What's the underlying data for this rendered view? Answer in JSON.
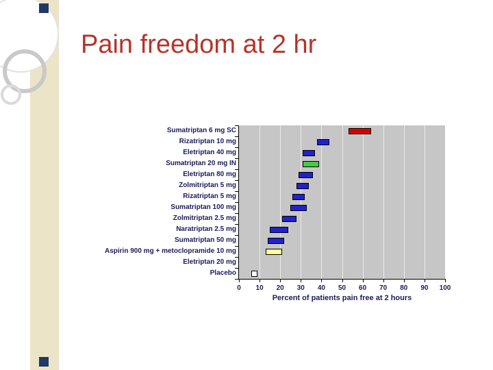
{
  "slide": {
    "title": "Pain freedom at 2 hr"
  },
  "theme": {
    "band_color": "#ece4c6",
    "accent_square_color": "#1f3864",
    "title_color": "#b5342a"
  },
  "chart_data": {
    "type": "bar",
    "orientation": "horizontal-range",
    "title": "",
    "xlabel": "Percent of patients pain free at 2 hours",
    "xlim": [
      0,
      100
    ],
    "xticks": [
      0,
      10,
      20,
      30,
      40,
      50,
      60,
      70,
      80,
      90,
      100
    ],
    "plot_bg": "#c6c6c6",
    "grid": true,
    "legend": false,
    "bars": [
      {
        "label": "Sumatriptan 6 mg SC",
        "low": 53,
        "high": 64,
        "color": "#d40000"
      },
      {
        "label": "Rizatriptan 10 mg",
        "low": 38,
        "high": 44,
        "color": "#2222cc"
      },
      {
        "label": "Eletriptan 40 mg",
        "low": 31,
        "high": 37,
        "color": "#2222cc"
      },
      {
        "label": "Sumatriptan 20 mg IN",
        "low": 31,
        "high": 39,
        "color": "#44cc44"
      },
      {
        "label": "Eletriptan 80 mg",
        "low": 29,
        "high": 36,
        "color": "#2222cc"
      },
      {
        "label": "Zolmitriptan 5 mg",
        "low": 28,
        "high": 34,
        "color": "#2222cc"
      },
      {
        "label": "Rizatriptan 5 mg",
        "low": 26,
        "high": 32,
        "color": "#2222cc"
      },
      {
        "label": "Sumatriptan 100 mg",
        "low": 25,
        "high": 33,
        "color": "#2222cc"
      },
      {
        "label": "Zolmitriptan 2.5 mg",
        "low": 21,
        "high": 28,
        "color": "#2222cc"
      },
      {
        "label": "Naratriptan 2.5 mg",
        "low": 15,
        "high": 24,
        "color": "#2222cc"
      },
      {
        "label": "Sumatriptan 50 mg",
        "low": 14,
        "high": 22,
        "color": "#2222cc"
      },
      {
        "label": "Aspirin 900 mg + metoclopramide 10 mg",
        "low": 13,
        "high": 21,
        "color": "#ffff99"
      },
      {
        "label": "Eletriptan 20 mg",
        "low": null,
        "high": null,
        "color": null
      },
      {
        "label": "Placebo",
        "low": 6,
        "high": 9,
        "color": "#ffffff"
      }
    ]
  }
}
